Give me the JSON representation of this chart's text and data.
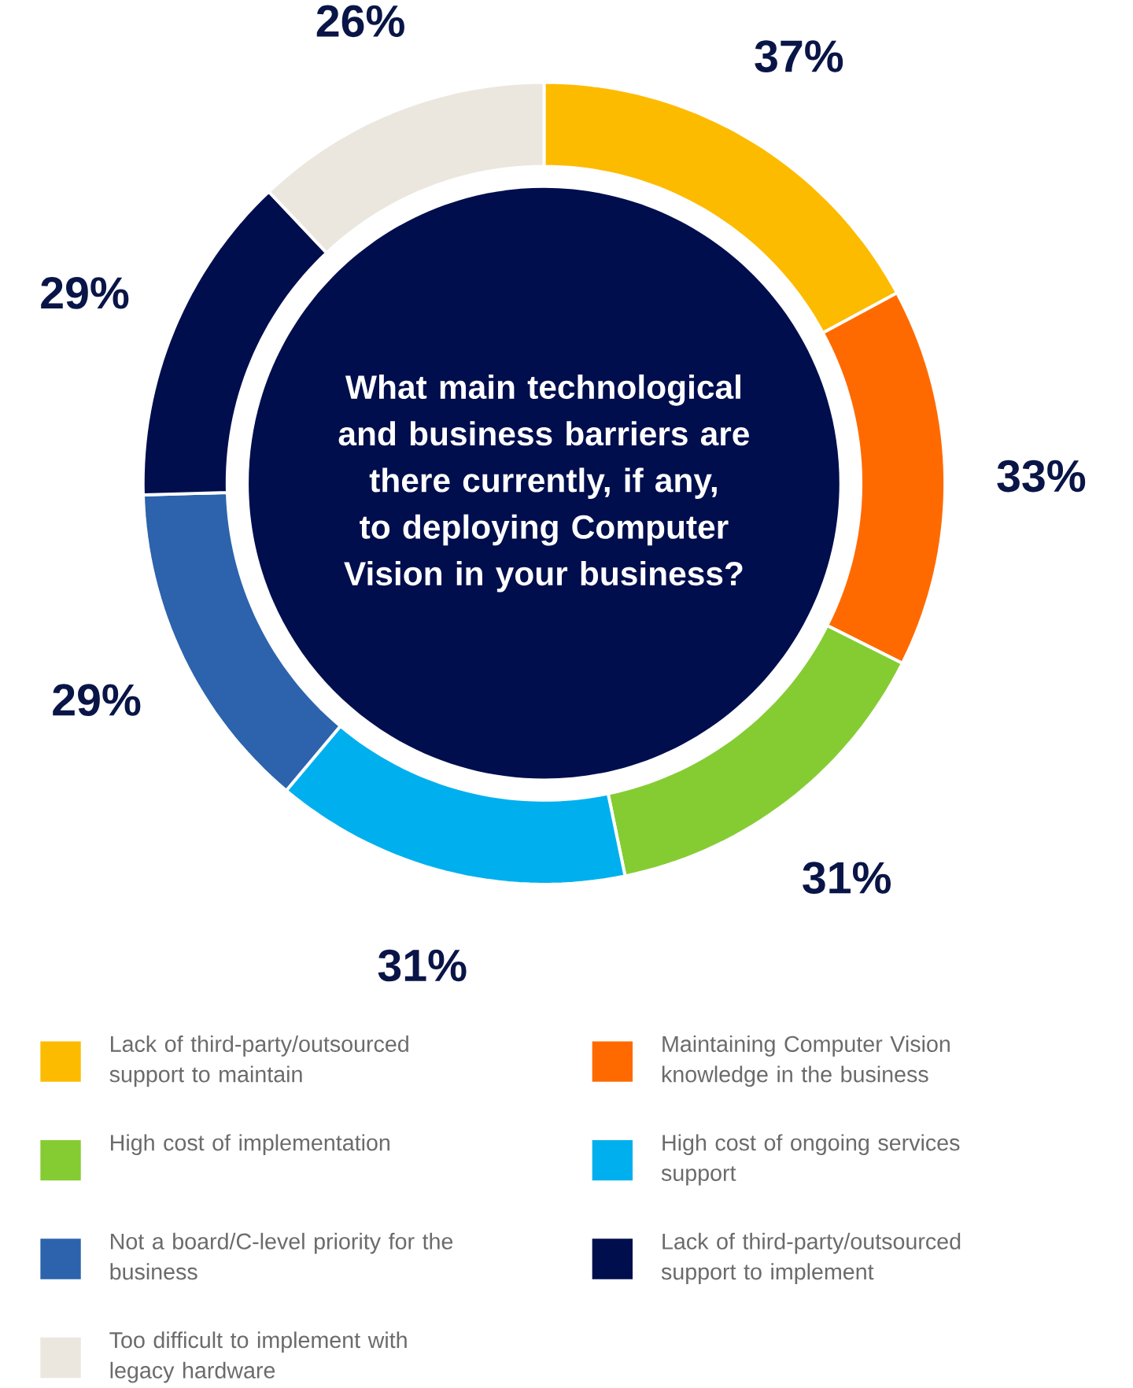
{
  "chart_data": {
    "type": "donut",
    "title": "What main technological and business barriers are there currently, if any, to deploying Computer Vision in your business?",
    "categories": [
      "Lack of third-party/outsourced support to maintain",
      "Maintaining Computer Vision knowledge in the business",
      "High cost of implementation",
      "High cost of ongoing services support",
      "Not a board/C-level priority for the business",
      "Lack of third-party/outsourced support to implement",
      "Too difficult to implement with legacy hardware"
    ],
    "values": [
      37,
      33,
      31,
      31,
      29,
      29,
      26
    ],
    "colors": [
      "#fdbb00",
      "#ff6a00",
      "#85cc33",
      "#00b0ee",
      "#2c63ac",
      "#000e4d",
      "#ebe7df"
    ],
    "value_labels": [
      "37%",
      "33%",
      "31%",
      "31%",
      "29%",
      "29%",
      "26%"
    ],
    "legend": "bottom"
  }
}
